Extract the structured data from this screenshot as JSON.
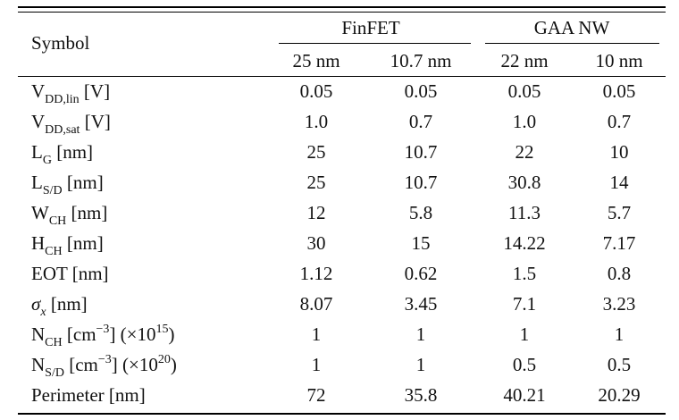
{
  "table": {
    "symbol_header": "Symbol",
    "groups": [
      "FinFET",
      "GAA NW"
    ],
    "columns": [
      "25 nm",
      "10.7 nm",
      "22 nm",
      "10 nm"
    ],
    "rows": [
      {
        "base": "V",
        "sub": "DD,lin",
        "unit": " [V]",
        "values": [
          "0.05",
          "0.05",
          "0.05",
          "0.05"
        ]
      },
      {
        "base": "V",
        "sub": "DD,sat",
        "unit": " [V]",
        "values": [
          "1.0",
          "0.7",
          "1.0",
          "0.7"
        ]
      },
      {
        "base": "L",
        "sub": "G",
        "unit": " [nm]",
        "values": [
          "25",
          "10.7",
          "22",
          "10"
        ]
      },
      {
        "base": "L",
        "sub": "S/D",
        "unit": " [nm]",
        "values": [
          "25",
          "10.7",
          "30.8",
          "14"
        ]
      },
      {
        "base": "W",
        "sub": "CH",
        "unit": " [nm]",
        "values": [
          "12",
          "5.8",
          "11.3",
          "5.7"
        ]
      },
      {
        "base": "H",
        "sub": "CH",
        "unit": " [nm]",
        "values": [
          "30",
          "15",
          "14.22",
          "7.17"
        ]
      },
      {
        "base": "EOT",
        "unit": " [nm]",
        "values": [
          "1.12",
          "0.62",
          "1.5",
          "0.8"
        ]
      },
      {
        "base": "σ",
        "sub": "x",
        "unit": " [nm]",
        "values": [
          "8.07",
          "3.45",
          "7.1",
          "3.23"
        ]
      },
      {
        "base": "N",
        "sub": "CH",
        "unit": " [cm",
        "sup": "−3",
        "tail": "] (×10",
        "sup2": "15",
        "end": ")",
        "values": [
          "1",
          "1",
          "1",
          "1"
        ]
      },
      {
        "base": "N",
        "sub": "S/D",
        "unit": " [cm",
        "sup": "−3",
        "tail": "] (×10",
        "sup2": "20",
        "end": ")",
        "values": [
          "1",
          "1",
          "0.5",
          "0.5"
        ]
      },
      {
        "base": "Perimeter",
        "unit": " [nm]",
        "values": [
          "72",
          "35.8",
          "40.21",
          "20.29"
        ]
      }
    ]
  }
}
